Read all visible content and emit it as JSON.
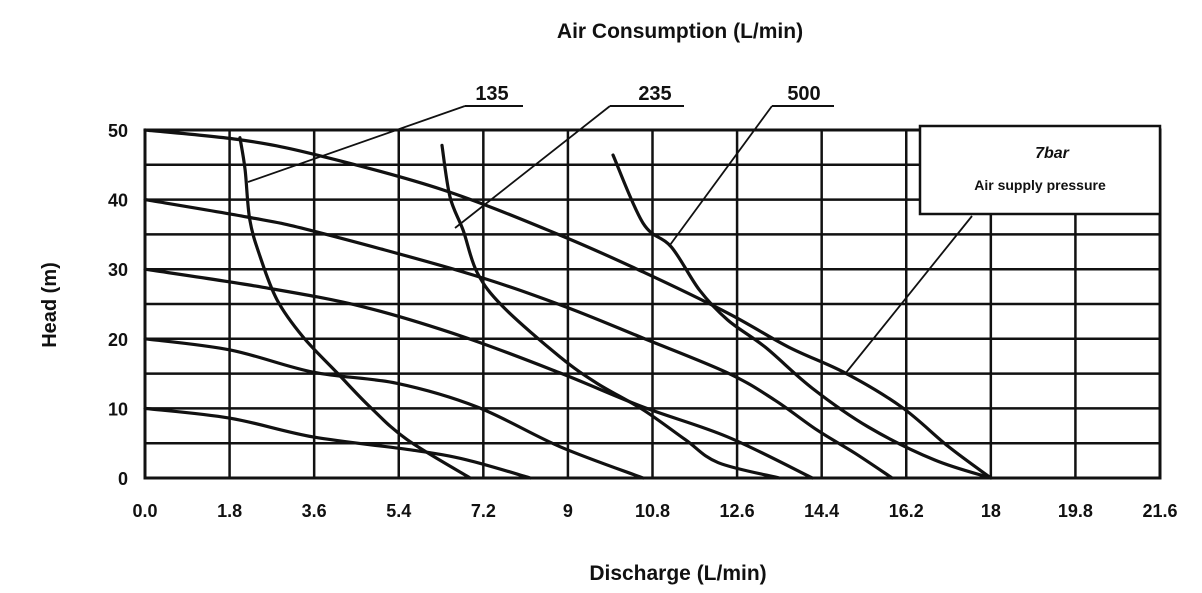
{
  "chart_data": {
    "type": "line",
    "title": "Air Consumption (L/min)",
    "xlabel": "Discharge (L/min)",
    "ylabel": "Head (m)",
    "xlim": [
      0,
      21.6
    ],
    "ylim": [
      0,
      50
    ],
    "xticks": [
      "0.0",
      "1.8",
      "3.6",
      "5.4",
      "7.2",
      "9",
      "10.8",
      "12.6",
      "14.4",
      "16.2",
      "18",
      "19.8",
      "21.6"
    ],
    "xtick_values": [
      0,
      1.8,
      3.6,
      5.4,
      7.2,
      9,
      10.8,
      12.6,
      14.4,
      16.2,
      18,
      19.8,
      21.6
    ],
    "yticks": [
      "0",
      "10",
      "20",
      "30",
      "40",
      "50"
    ],
    "ytick_values": [
      0,
      10,
      20,
      30,
      40,
      50
    ],
    "grid": true,
    "grid_minor_y_step": 5,
    "legend_box": {
      "line1": "7bar",
      "line2": "Air supply pressure",
      "placement": "top-right"
    },
    "series": [
      {
        "name": "head-50",
        "kind": "pressure-curve",
        "x": [
          0,
          2.02,
          3.66,
          6.34,
          8.83,
          10.6,
          12.4,
          13.7,
          14.9,
          16.1,
          17.1,
          18
        ],
        "y": [
          50,
          48.6,
          46.4,
          41.4,
          34.9,
          29.6,
          23.7,
          18.8,
          15.1,
          10.2,
          4.5,
          0
        ]
      },
      {
        "name": "head-40",
        "kind": "pressure-curve",
        "x": [
          0,
          2.17,
          3.51,
          6.77,
          8.83,
          10.6,
          12.4,
          13.4,
          14.3,
          15.1,
          15.9
        ],
        "y": [
          40,
          37.5,
          35.6,
          29.6,
          24.9,
          20.1,
          15.1,
          11.2,
          6.9,
          3.6,
          0
        ]
      },
      {
        "name": "head-30",
        "kind": "pressure-curve",
        "x": [
          0,
          2.51,
          4.64,
          6.77,
          8.83,
          10.6,
          12.4,
          14.2
        ],
        "y": [
          30,
          27.4,
          24.6,
          20.3,
          15.1,
          10.2,
          5.9,
          0
        ]
      },
      {
        "name": "head-20",
        "kind": "pressure-curve",
        "x": [
          0,
          1.81,
          3.58,
          5.36,
          7.07,
          8.83,
          10.6
        ],
        "y": [
          20,
          18.4,
          15.2,
          13.6,
          10.2,
          4.5,
          0
        ]
      },
      {
        "name": "head-10",
        "kind": "pressure-curve",
        "x": [
          0,
          1.81,
          3.58,
          5.7,
          6.85,
          8.2
        ],
        "y": [
          10,
          8.6,
          5.9,
          4.0,
          2.6,
          0
        ]
      },
      {
        "name": "air-135",
        "kind": "air-consumption",
        "x": [
          2.02,
          2.13,
          2.23,
          2.45,
          2.81,
          3.36,
          4.09,
          4.79,
          5.58,
          6.92
        ],
        "y": [
          48.9,
          44.3,
          37.1,
          31.8,
          25.6,
          20.3,
          15.1,
          10.2,
          5.5,
          0
        ]
      },
      {
        "name": "air-235",
        "kind": "air-consumption",
        "x": [
          6.32,
          6.49,
          6.77,
          7.07,
          7.62,
          8.83,
          9.62,
          10.6,
          11.5,
          12.2,
          13.5
        ],
        "y": [
          47.8,
          40.4,
          35.6,
          29.5,
          24.6,
          17.4,
          13.6,
          9.8,
          5.5,
          2.2,
          0
        ]
      },
      {
        "name": "air-500",
        "kind": "air-consumption",
        "x": [
          9.96,
          10.6,
          11.2,
          11.8,
          12.4,
          13.2,
          14.2,
          15.4,
          16.8,
          18
        ],
        "y": [
          46.4,
          36.6,
          33.2,
          27.0,
          22.7,
          18.8,
          12.9,
          7.3,
          2.6,
          0
        ]
      }
    ],
    "annotations": [
      {
        "text": "135",
        "target": "air-135"
      },
      {
        "text": "235",
        "target": "air-235"
      },
      {
        "text": "500",
        "target": "air-500"
      }
    ]
  }
}
